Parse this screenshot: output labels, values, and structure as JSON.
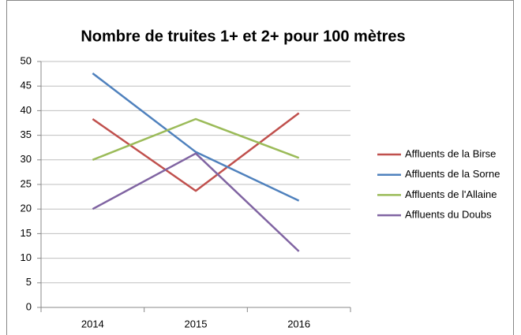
{
  "chart_data": {
    "type": "line",
    "title": "Nombre de truites 1+ et 2+ pour 100 mètres",
    "categories": [
      "2014",
      "2015",
      "2016"
    ],
    "series": [
      {
        "name": "Affluents de la Birse",
        "color": "#c0504d",
        "values": [
          38.3,
          23.7,
          39.5
        ]
      },
      {
        "name": "Affluents de la Sorne",
        "color": "#4f81bd",
        "values": [
          47.6,
          31.6,
          21.7
        ]
      },
      {
        "name": "Affluents de l'Allaine",
        "color": "#9bbb59",
        "values": [
          30,
          38.3,
          30.4
        ]
      },
      {
        "name": "Affluents du Doubs",
        "color": "#8064a2",
        "values": [
          20,
          31.3,
          11.4
        ]
      }
    ],
    "ylim": [
      0,
      50
    ],
    "yticks": [
      0,
      5,
      10,
      15,
      20,
      25,
      30,
      35,
      40,
      45,
      50
    ],
    "grid": true,
    "legend": "right"
  }
}
